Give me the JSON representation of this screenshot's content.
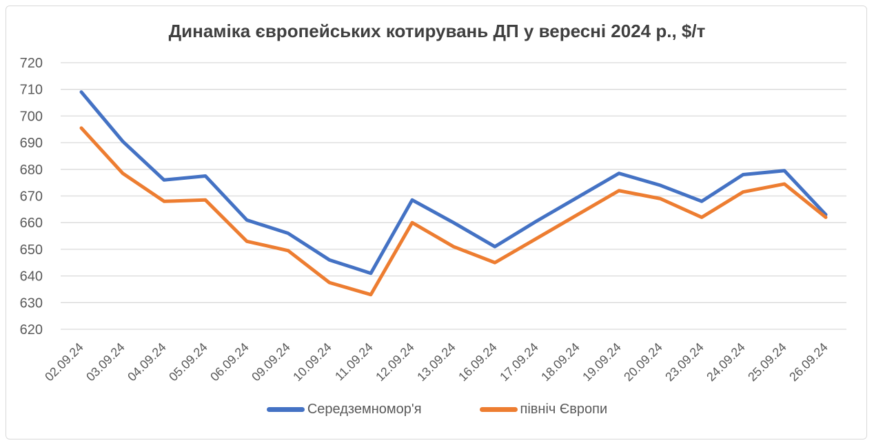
{
  "window": {
    "background": "#ffffff",
    "border_color": "#d9d9d9"
  },
  "chart_data": {
    "type": "line",
    "title": "Динаміка європейських котирувань ДП у вересні 2024 р., $/т",
    "categories": [
      "02.09.24",
      "03.09.24",
      "04.09.24",
      "05.09.24",
      "06.09.24",
      "09.09.24",
      "10.09.24",
      "11.09.24",
      "12.09.24",
      "13.09.24",
      "16.09.24",
      "17.09.24",
      "18.09.24",
      "19.09.24",
      "20.09.24",
      "23.09.24",
      "24.09.24",
      "25.09.24",
      "26.09.24"
    ],
    "series": [
      {
        "name": "Середземномор'я",
        "color": "#4472C4",
        "values": [
          709,
          690.5,
          676,
          677.5,
          661,
          656,
          646,
          641,
          668.5,
          660,
          651,
          660.5,
          669.5,
          678.5,
          674,
          668,
          678,
          679.5,
          663
        ]
      },
      {
        "name": "північ Європи",
        "color": "#ED7D31",
        "values": [
          695.5,
          678.5,
          668,
          668.5,
          653,
          649.5,
          637.5,
          633,
          660,
          651,
          645,
          654,
          663,
          672,
          669,
          662,
          671.5,
          674.5,
          662
        ]
      }
    ],
    "xlabel": "",
    "ylabel": "",
    "ylim": [
      620,
      720
    ],
    "yticks": [
      620,
      630,
      640,
      650,
      660,
      670,
      680,
      690,
      700,
      710,
      720
    ],
    "grid": "horizontal-only",
    "legend_position": "bottom",
    "colors": {
      "gridline": "#d9d9d9",
      "axis_label": "#595959",
      "title": "#3f3f3f"
    }
  }
}
